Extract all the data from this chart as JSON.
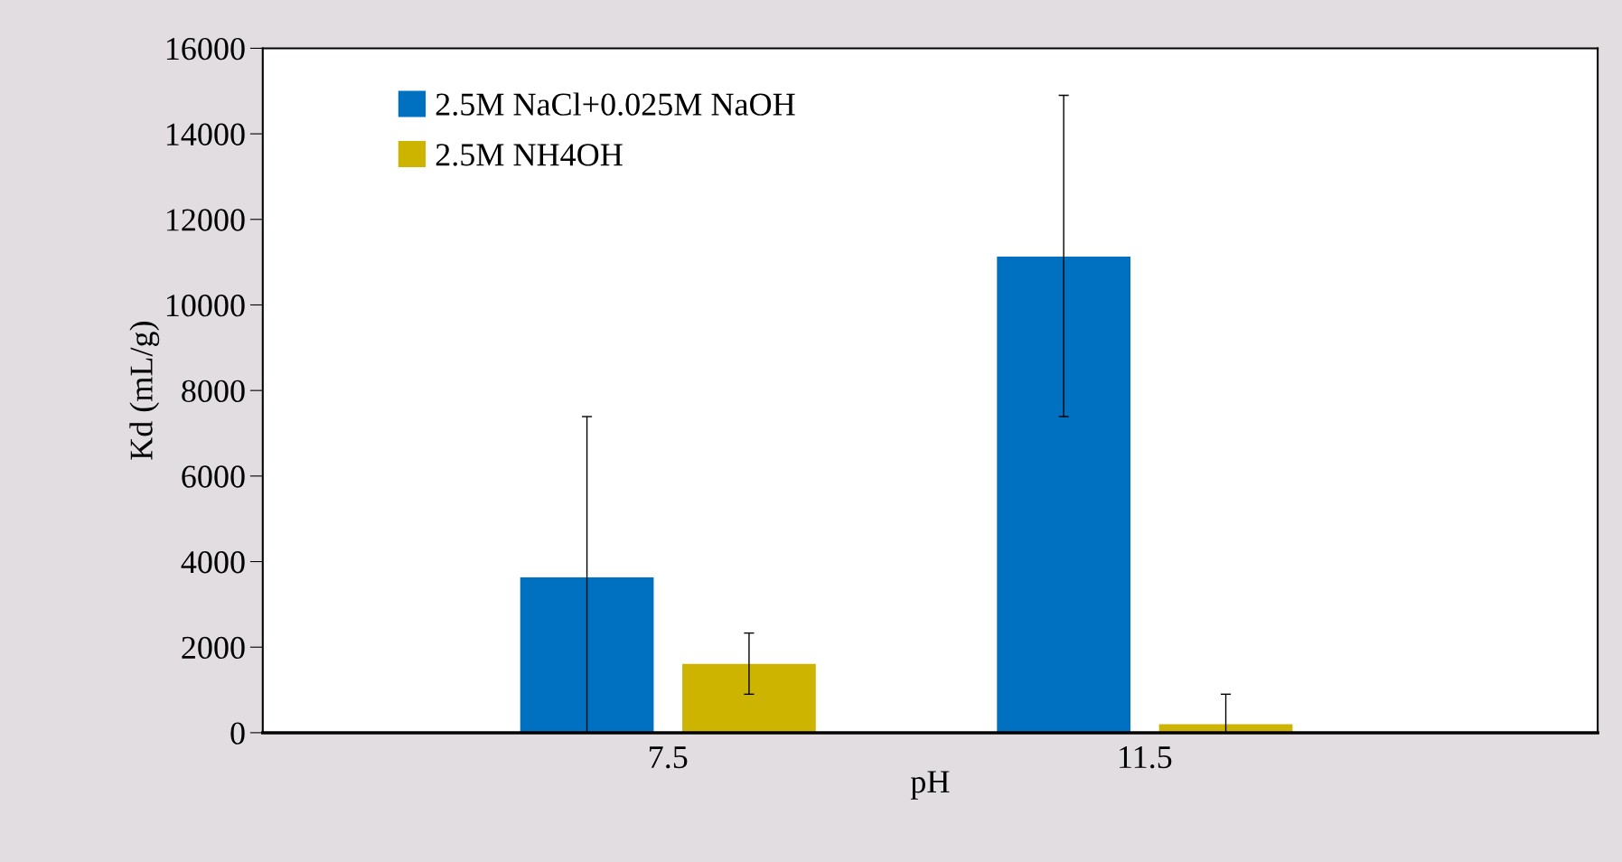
{
  "chart_data": {
    "type": "bar",
    "xlabel": "pH",
    "ylabel": "Kd (mL/g)",
    "categories": [
      "7.5",
      "11.5"
    ],
    "series": [
      {
        "name": "2.5M NaCl+0.025M NaOH",
        "color": "#0070c0",
        "values": [
          3630,
          11130
        ],
        "errors": [
          [
            0,
            7390
          ],
          [
            7390,
            14900
          ]
        ]
      },
      {
        "name": "2.5M NH4OH",
        "color": "#ccb400",
        "values": [
          1610,
          200
        ],
        "errors": [
          [
            900,
            2330
          ],
          [
            0,
            900
          ]
        ]
      }
    ],
    "ylim": [
      0,
      16000
    ],
    "yticks": [
      0,
      2000,
      4000,
      6000,
      8000,
      10000,
      12000,
      14000,
      16000
    ],
    "legend": "top left",
    "grid": false
  }
}
